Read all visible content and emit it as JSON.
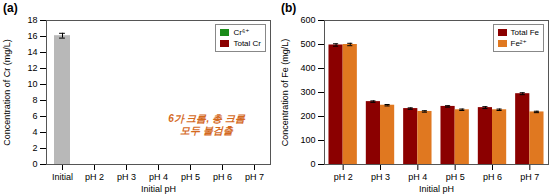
{
  "chart_data": [
    {
      "type": "bar",
      "title": "(a)",
      "categories": [
        "Initial",
        "pH 2",
        "pH 3",
        "pH 4",
        "pH 5",
        "pH 6",
        "pH 7"
      ],
      "series": [
        {
          "color": "#b8b8b8",
          "values": [
            16.1,
            null,
            null,
            null,
            null,
            null,
            null
          ],
          "errors": [
            0.3,
            null,
            null,
            null,
            null,
            null,
            null
          ]
        },
        {
          "name": "Cr⁶⁺",
          "color": "#1a8c1a",
          "values": [
            null,
            null,
            null,
            null,
            null,
            null,
            null
          ]
        },
        {
          "name": "Total Cr",
          "color": "#8b0000",
          "values": [
            null,
            null,
            null,
            null,
            null,
            null,
            null
          ]
        }
      ],
      "xlabel": "Initial pH",
      "ylabel": "Concentration of Cr (mg/L)",
      "ylim": [
        0,
        18
      ],
      "yticks": [
        0,
        2,
        4,
        6,
        8,
        10,
        12,
        14,
        16,
        18
      ],
      "legend": "upper right",
      "annotations": [
        {
          "text": "6가 크롬, 총 크롬\n모두 불검출",
          "x": 4.5,
          "y": 5.0,
          "color": "#d4691e"
        }
      ]
    },
    {
      "type": "bar",
      "title": "(b)",
      "categories": [
        "pH 2",
        "pH 3",
        "pH 4",
        "pH 5",
        "pH 6",
        "pH 7"
      ],
      "series": [
        {
          "name": "Total Fe",
          "color": "#8b0000",
          "values": [
            498,
            262,
            233,
            242,
            237,
            295
          ],
          "errors": [
            5,
            3,
            3,
            3,
            4,
            4
          ]
        },
        {
          "name": "Fe²⁺",
          "color": "#e07820",
          "values": [
            500,
            247,
            221,
            228,
            228,
            219
          ],
          "errors": [
            5,
            3,
            3,
            3,
            3,
            3
          ]
        }
      ],
      "xlabel": "Initial pH",
      "ylabel": "Concentration of Fe (mg/L)",
      "ylim": [
        0,
        600
      ],
      "yticks": [
        0,
        100,
        200,
        300,
        400,
        500,
        600
      ],
      "legend": "upper right"
    }
  ]
}
